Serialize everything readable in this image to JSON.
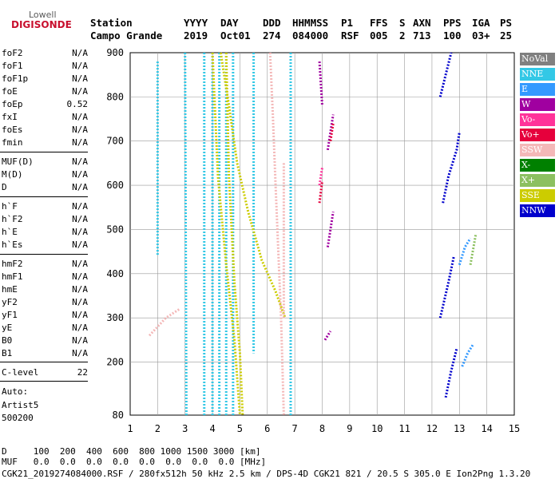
{
  "logo": {
    "line1": "Lowell",
    "line2": "DIGISONDE"
  },
  "header": {
    "labels_row": [
      "Station",
      "YYYY",
      "DAY",
      "DDD",
      "HHMMSS",
      "P1",
      "FFS",
      "S",
      "AXN",
      "PPS",
      "IGA",
      "PS"
    ],
    "values_row": [
      "Campo Grande",
      "2019",
      "Oct01",
      "274",
      "084000",
      "RSF",
      "005",
      "2",
      "713",
      "100",
      "03+",
      "25"
    ]
  },
  "params": [
    {
      "name": "foF2",
      "value": "N/A"
    },
    {
      "name": "foF1",
      "value": "N/A"
    },
    {
      "name": "foF1p",
      "value": "N/A"
    },
    {
      "name": "foE",
      "value": "N/A"
    },
    {
      "name": "foEp",
      "value": "0.52"
    },
    {
      "name": "fxI",
      "value": "N/A"
    },
    {
      "name": "foEs",
      "value": "N/A"
    },
    {
      "name": "fmin",
      "value": "N/A"
    },
    {
      "name": "MUF(D)",
      "value": "N/A"
    },
    {
      "name": "M(D)",
      "value": "N/A"
    },
    {
      "name": "D",
      "value": "N/A"
    },
    {
      "name": "h`F",
      "value": "N/A"
    },
    {
      "name": "h`F2",
      "value": "N/A"
    },
    {
      "name": "h`E",
      "value": "N/A"
    },
    {
      "name": "h`Es",
      "value": "N/A"
    },
    {
      "name": "hmF2",
      "value": "N/A"
    },
    {
      "name": "hmF1",
      "value": "N/A"
    },
    {
      "name": "hmE",
      "value": "N/A"
    },
    {
      "name": "yF2",
      "value": "N/A"
    },
    {
      "name": "yF1",
      "value": "N/A"
    },
    {
      "name": "yE",
      "value": "N/A"
    },
    {
      "name": "B0",
      "value": "N/A"
    },
    {
      "name": "B1",
      "value": "N/A"
    },
    {
      "name": "C-level",
      "value": "22"
    }
  ],
  "auto": {
    "line1": "Auto:",
    "line2": "Artist5",
    "line3": "500200"
  },
  "legend": [
    {
      "label": "NoVal",
      "color": "#808080"
    },
    {
      "label": "NNE",
      "color": "#33c8e6"
    },
    {
      "label": "E",
      "color": "#3399ff"
    },
    {
      "label": "W",
      "color": "#a000a0"
    },
    {
      "label": "Vo-",
      "color": "#ff3399"
    },
    {
      "label": "Vo+",
      "color": "#e6003c"
    },
    {
      "label": "SSW",
      "color": "#f4b8b8"
    },
    {
      "label": "X-",
      "color": "#008000"
    },
    {
      "label": "X+",
      "color": "#8cc060"
    },
    {
      "label": "SSE",
      "color": "#cccc00"
    },
    {
      "label": "NNW",
      "color": "#0000cc"
    }
  ],
  "bottom": {
    "d_row": "D     100  200  400  600  800 1000 1500 3000 [km]",
    "muf_row": "MUF   0.0  0.0  0.0  0.0  0.0  0.0  0.0  0.0 [MHz]",
    "footer": "CGK21_2019274084000.RSF / 280fx512h 50 kHz 2.5 km / DPS-4D CGK21 821 / 20.5 S 305.0 E Ion2Png 1.3.20"
  },
  "chart_data": {
    "type": "scatter",
    "xlim": [
      1,
      15
    ],
    "ylim": [
      80,
      900
    ],
    "x_ticks": [
      1,
      2,
      3,
      4,
      5,
      6,
      7,
      8,
      9,
      10,
      11,
      12,
      13,
      14,
      15
    ],
    "y_ticks": [
      200,
      300,
      400,
      500,
      600,
      700,
      800,
      900
    ],
    "y_tick_labels": [
      "200",
      "300",
      "400",
      "500",
      "600",
      "700",
      "800",
      "900"
    ],
    "y_bottom_label": "80",
    "grid": true,
    "series": [
      {
        "name": "NNE",
        "color": "#33c8e6",
        "traces": [
          {
            "x": [
              2.0,
              2.0
            ],
            "y": [
              880,
              440
            ]
          },
          {
            "x": [
              3.0,
              3.05
            ],
            "y": [
              900,
              80
            ]
          },
          {
            "x": [
              3.7,
              3.7
            ],
            "y": [
              900,
              80
            ]
          },
          {
            "x": [
              4.0,
              4.0
            ],
            "y": [
              900,
              80
            ]
          },
          {
            "x": [
              4.25,
              4.25
            ],
            "y": [
              900,
              80
            ]
          },
          {
            "x": [
              4.5,
              4.5
            ],
            "y": [
              900,
              80
            ]
          },
          {
            "x": [
              4.75,
              4.75
            ],
            "y": [
              900,
              80
            ]
          },
          {
            "x": [
              5.5,
              5.5
            ],
            "y": [
              900,
              220
            ]
          },
          {
            "x": [
              6.85,
              6.85
            ],
            "y": [
              900,
              80
            ]
          }
        ]
      },
      {
        "name": "SSE",
        "color": "#cccc00",
        "traces": [
          {
            "x": [
              4.3,
              4.6,
              4.9,
              5.3,
              5.8,
              6.3,
              6.65
            ],
            "y": [
              900,
              780,
              650,
              540,
              430,
              360,
              300
            ]
          },
          {
            "x": [
              4.5,
              4.6,
              4.8,
              5.0,
              5.1
            ],
            "y": [
              900,
              620,
              380,
              220,
              80
            ]
          },
          {
            "x": [
              4.0,
              4.2,
              4.5,
              4.8,
              5.0
            ],
            "y": [
              900,
              620,
              420,
              250,
              80
            ]
          }
        ]
      },
      {
        "name": "SSW",
        "color": "#f4b8b8",
        "traces": [
          {
            "x": [
              6.1,
              6.2,
              6.3,
              6.5,
              6.6
            ],
            "y": [
              900,
              760,
              600,
              300,
              80
            ]
          },
          {
            "x": [
              6.6,
              6.6
            ],
            "y": [
              650,
              300
            ]
          },
          {
            "x": [
              1.7,
              2.3,
              2.8
            ],
            "y": [
              260,
              300,
              320
            ]
          }
        ]
      },
      {
        "name": "NNW",
        "color": "#0000cc",
        "traces": [
          {
            "x": [
              12.4,
              12.6,
              12.9,
              13.0
            ],
            "y": [
              560,
              620,
              680,
              720
            ]
          },
          {
            "x": [
              12.3,
              12.6,
              12.8
            ],
            "y": [
              300,
              380,
              440
            ]
          },
          {
            "x": [
              12.5,
              12.7,
              12.9
            ],
            "y": [
              120,
              180,
              230
            ]
          },
          {
            "x": [
              12.3,
              12.5,
              12.7
            ],
            "y": [
              800,
              850,
              900
            ]
          }
        ]
      },
      {
        "name": "W",
        "color": "#a000a0",
        "traces": [
          {
            "x": [
              8.2,
              8.4
            ],
            "y": [
              680,
              760
            ]
          },
          {
            "x": [
              8.2,
              8.4
            ],
            "y": [
              460,
              540
            ]
          },
          {
            "x": [
              8.1,
              8.3
            ],
            "y": [
              250,
              270
            ]
          },
          {
            "x": [
              7.9,
              8.0
            ],
            "y": [
              880,
              780
            ]
          }
        ]
      },
      {
        "name": "E",
        "color": "#3399ff",
        "traces": [
          {
            "x": [
              13.1,
              13.3,
              13.5
            ],
            "y": [
              190,
              220,
              240
            ]
          },
          {
            "x": [
              13.0,
              13.2,
              13.4
            ],
            "y": [
              420,
              460,
              480
            ]
          }
        ]
      },
      {
        "name": "Vo+",
        "color": "#e6003c",
        "traces": [
          {
            "x": [
              8.3,
              8.4
            ],
            "y": [
              700,
              740
            ]
          },
          {
            "x": [
              7.9,
              8.0
            ],
            "y": [
              560,
              610
            ]
          }
        ]
      },
      {
        "name": "Vo-",
        "color": "#ff3399",
        "traces": [
          {
            "x": [
              7.9,
              8.0
            ],
            "y": [
              600,
              640
            ]
          }
        ]
      },
      {
        "name": "X+",
        "color": "#8cc060",
        "traces": [
          {
            "x": [
              13.4,
              13.6
            ],
            "y": [
              420,
              490
            ]
          }
        ]
      }
    ]
  }
}
